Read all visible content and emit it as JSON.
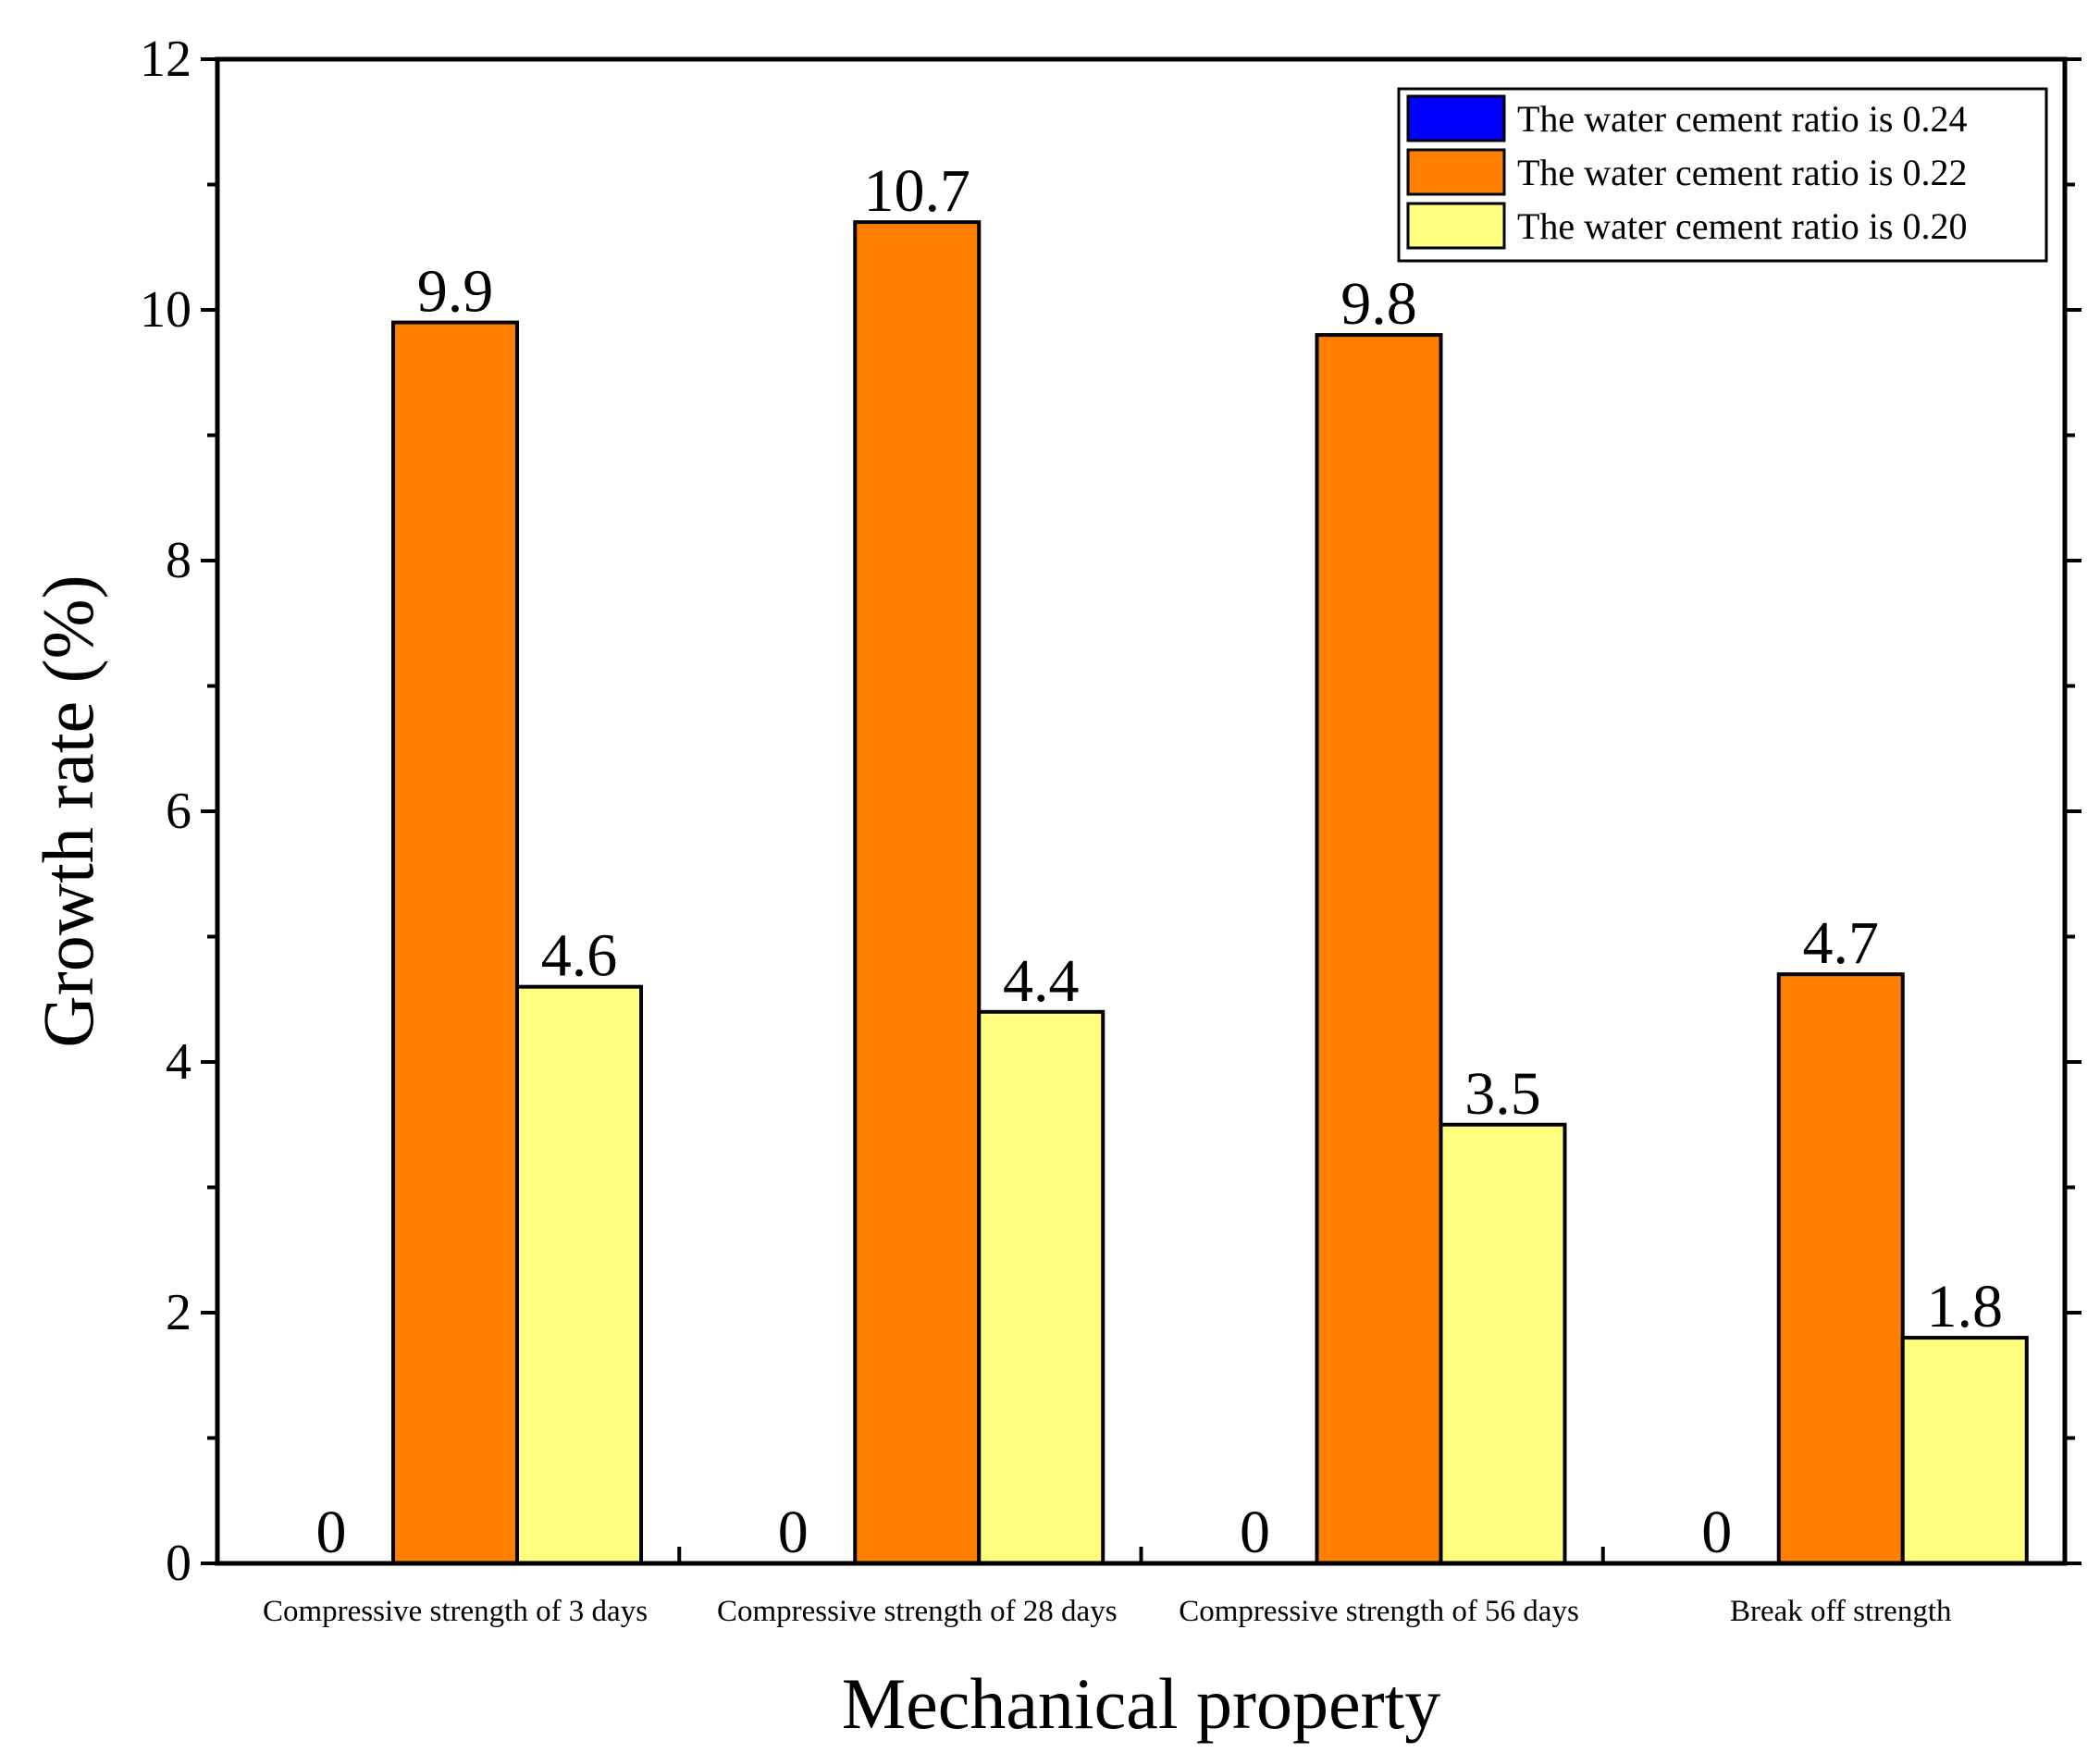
{
  "chart_data": {
    "type": "bar",
    "title": "",
    "xlabel": "Mechanical property",
    "ylabel": "Growth rate (%)",
    "ylim": [
      0,
      12
    ],
    "yticks": [
      "0",
      "2",
      "4",
      "6",
      "8",
      "10",
      "12"
    ],
    "categories": [
      "Compressive strength of 3 days",
      "Compressive strength of 28 days",
      "Compressive strength of 56 days",
      "Break off strength"
    ],
    "series": [
      {
        "name": "The water cement ratio is 0.24",
        "color": "#0000ff",
        "values": [
          0,
          0,
          0,
          0
        ],
        "labels": [
          "0",
          "0",
          "0",
          "0"
        ]
      },
      {
        "name": "The water cement ratio is 0.22",
        "color": "#ff8000",
        "values": [
          9.9,
          10.7,
          9.8,
          4.7
        ],
        "labels": [
          "9.9",
          "10.7",
          "9.8",
          "4.7"
        ]
      },
      {
        "name": "The water cement ratio is 0.20",
        "color": "#ffff80",
        "values": [
          4.6,
          4.4,
          3.5,
          1.8
        ],
        "labels": [
          "4.6",
          "4.4",
          "3.5",
          "1.8"
        ]
      }
    ],
    "grid": false,
    "legend_position": "top-right"
  }
}
